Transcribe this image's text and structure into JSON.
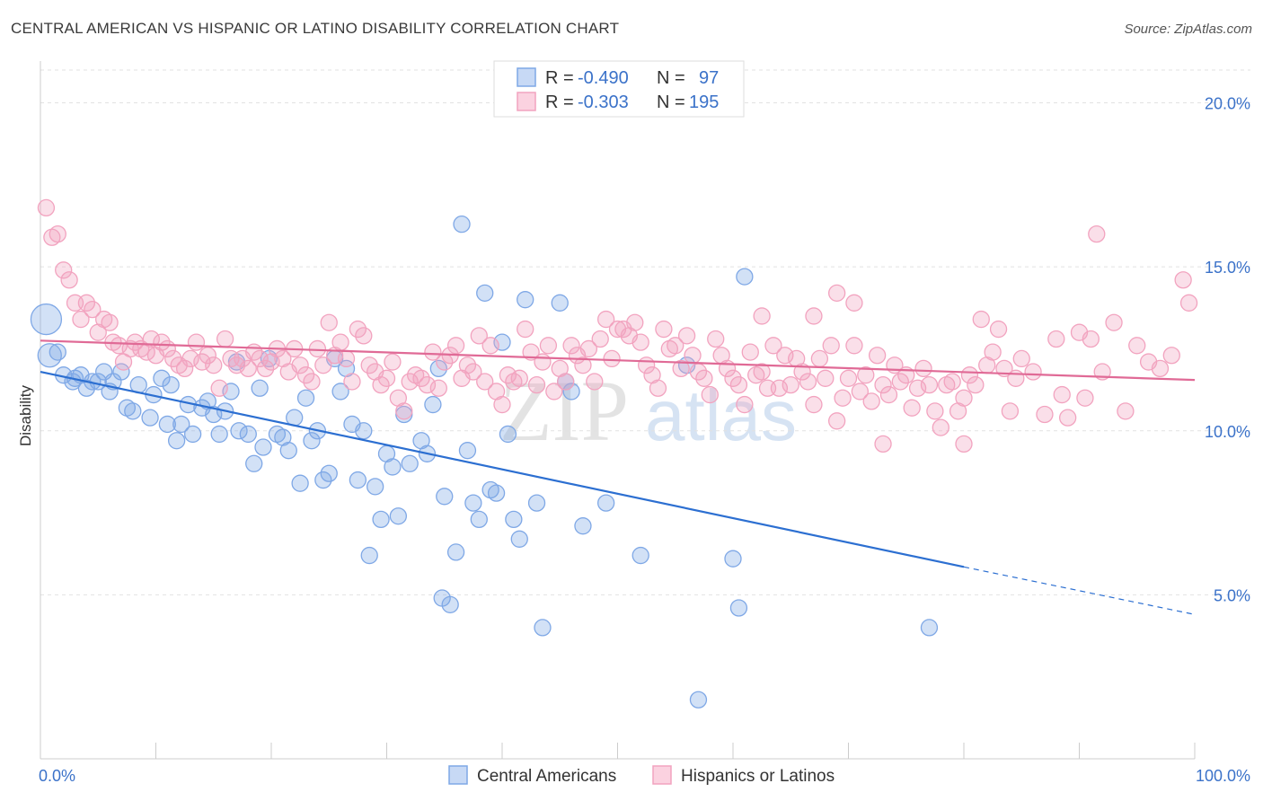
{
  "title": "CENTRAL AMERICAN VS HISPANIC OR LATINO DISABILITY CORRELATION CHART",
  "source": "Source: ZipAtlas.com",
  "watermark": {
    "zip": "ZIP",
    "atlas": "atlas"
  },
  "legend": {
    "row1": {
      "r_label": "R =",
      "r_value": "-0.490",
      "n_label": "N =",
      "n_value": "97"
    },
    "row2": {
      "r_label": "R =",
      "r_value": "-0.303",
      "n_label": "N =",
      "n_value": "195"
    }
  },
  "chart_data": {
    "type": "scatter",
    "xlabel": "",
    "ylabel": "Disability",
    "xlim": [
      0,
      100
    ],
    "ylim": [
      0,
      21
    ],
    "x_tick_labels": [
      "0.0%",
      "100.0%"
    ],
    "y_ticks": [
      5,
      10,
      15,
      20
    ],
    "y_tick_labels": [
      "5.0%",
      "10.0%",
      "15.0%",
      "20.0%"
    ],
    "grid": true,
    "legend_position": "top-center",
    "series": [
      {
        "name": "Central Americans",
        "color": "#7fa8e6",
        "line_color": "#2c6fd1",
        "trend": {
          "x0": 0,
          "y0": 11.8,
          "x1": 80,
          "y1": 5.85,
          "dash_to_x": 100,
          "dash_to_y": 4.4
        },
        "points": [
          [
            0.5,
            13.4
          ],
          [
            0.8,
            12.3
          ],
          [
            1.5,
            12.4
          ],
          [
            2,
            11.7
          ],
          [
            3,
            11.6
          ],
          [
            2.8,
            11.5
          ],
          [
            3.5,
            11.7
          ],
          [
            4,
            11.3
          ],
          [
            4.5,
            11.5
          ],
          [
            5,
            11.5
          ],
          [
            5.5,
            11.8
          ],
          [
            6,
            11.2
          ],
          [
            6.3,
            11.5
          ],
          [
            7,
            11.8
          ],
          [
            7.5,
            10.7
          ],
          [
            8,
            10.6
          ],
          [
            8.5,
            11.4
          ],
          [
            9.5,
            10.4
          ],
          [
            9.8,
            11.1
          ],
          [
            10.5,
            11.6
          ],
          [
            11,
            10.2
          ],
          [
            11.3,
            11.4
          ],
          [
            11.8,
            9.7
          ],
          [
            12.2,
            10.2
          ],
          [
            12.8,
            10.8
          ],
          [
            13.2,
            9.9
          ],
          [
            14,
            10.7
          ],
          [
            14.5,
            10.9
          ],
          [
            15,
            10.5
          ],
          [
            15.5,
            9.9
          ],
          [
            16,
            10.6
          ],
          [
            16.5,
            11.2
          ],
          [
            17,
            12.1
          ],
          [
            17.2,
            10.0
          ],
          [
            18,
            9.9
          ],
          [
            18.5,
            9.0
          ],
          [
            19,
            11.3
          ],
          [
            19.3,
            9.5
          ],
          [
            19.8,
            12.2
          ],
          [
            20.5,
            9.9
          ],
          [
            21,
            9.8
          ],
          [
            21.5,
            9.4
          ],
          [
            22,
            10.4
          ],
          [
            22.5,
            8.4
          ],
          [
            23,
            11.0
          ],
          [
            23.5,
            9.7
          ],
          [
            24,
            10.0
          ],
          [
            24.5,
            8.5
          ],
          [
            25,
            8.7
          ],
          [
            25.5,
            12.2
          ],
          [
            26,
            11.2
          ],
          [
            26.5,
            11.9
          ],
          [
            27,
            10.2
          ],
          [
            27.5,
            8.5
          ],
          [
            28,
            10.0
          ],
          [
            28.5,
            6.2
          ],
          [
            29,
            8.3
          ],
          [
            29.5,
            7.3
          ],
          [
            30,
            9.3
          ],
          [
            30.5,
            8.9
          ],
          [
            31,
            7.4
          ],
          [
            31.5,
            10.5
          ],
          [
            32,
            9.0
          ],
          [
            33,
            9.7
          ],
          [
            33.5,
            9.3
          ],
          [
            34,
            10.8
          ],
          [
            34.5,
            11.9
          ],
          [
            34.8,
            4.9
          ],
          [
            35,
            8.0
          ],
          [
            35.5,
            4.7
          ],
          [
            36,
            6.3
          ],
          [
            36.5,
            16.3
          ],
          [
            37,
            9.4
          ],
          [
            37.5,
            7.8
          ],
          [
            38,
            7.3
          ],
          [
            38.5,
            14.2
          ],
          [
            39,
            8.2
          ],
          [
            39.5,
            8.1
          ],
          [
            40,
            12.7
          ],
          [
            40.5,
            9.9
          ],
          [
            41,
            7.3
          ],
          [
            41.5,
            6.7
          ],
          [
            42,
            14.0
          ],
          [
            43,
            7.8
          ],
          [
            43.5,
            4.0
          ],
          [
            45,
            13.9
          ],
          [
            46,
            11.2
          ],
          [
            47,
            7.1
          ],
          [
            49,
            7.8
          ],
          [
            52,
            6.2
          ],
          [
            56,
            12.0
          ],
          [
            57,
            1.8
          ],
          [
            60,
            6.1
          ],
          [
            60.5,
            4.6
          ],
          [
            61,
            14.7
          ],
          [
            77,
            4.0
          ],
          [
            45.5,
            11.5
          ]
        ]
      },
      {
        "name": "Hispanics or Latinos",
        "color": "#f2a3bf",
        "line_color": "#e06a96",
        "trend": {
          "x0": 0,
          "y0": 12.75,
          "x1": 100,
          "y1": 11.55
        },
        "points": [
          [
            0.5,
            16.8
          ],
          [
            1,
            15.9
          ],
          [
            1.5,
            16.0
          ],
          [
            2,
            14.9
          ],
          [
            2.5,
            14.6
          ],
          [
            3,
            13.9
          ],
          [
            3.5,
            13.4
          ],
          [
            4,
            13.9
          ],
          [
            4.5,
            13.7
          ],
          [
            5,
            13.0
          ],
          [
            5.5,
            13.4
          ],
          [
            6,
            13.3
          ],
          [
            6.3,
            12.7
          ],
          [
            6.8,
            12.6
          ],
          [
            7.2,
            12.1
          ],
          [
            7.8,
            12.5
          ],
          [
            8.2,
            12.7
          ],
          [
            8.7,
            12.5
          ],
          [
            9.2,
            12.4
          ],
          [
            9.6,
            12.8
          ],
          [
            10,
            12.3
          ],
          [
            10.5,
            12.7
          ],
          [
            11,
            12.5
          ],
          [
            11.5,
            12.2
          ],
          [
            12,
            12.0
          ],
          [
            12.5,
            11.9
          ],
          [
            13,
            12.2
          ],
          [
            13.5,
            12.7
          ],
          [
            14,
            12.1
          ],
          [
            14.5,
            12.3
          ],
          [
            15,
            12.0
          ],
          [
            15.5,
            11.3
          ],
          [
            16,
            12.8
          ],
          [
            16.5,
            12.2
          ],
          [
            17,
            12.0
          ],
          [
            17.5,
            12.2
          ],
          [
            18,
            11.9
          ],
          [
            18.5,
            12.4
          ],
          [
            19,
            12.2
          ],
          [
            19.5,
            11.9
          ],
          [
            20,
            12.1
          ],
          [
            20.5,
            12.5
          ],
          [
            21,
            12.2
          ],
          [
            21.5,
            11.8
          ],
          [
            22,
            12.5
          ],
          [
            22.5,
            12.0
          ],
          [
            23,
            11.7
          ],
          [
            23.5,
            11.5
          ],
          [
            24,
            12.5
          ],
          [
            24.5,
            12.0
          ],
          [
            25,
            13.3
          ],
          [
            25.5,
            12.3
          ],
          [
            26,
            12.7
          ],
          [
            26.5,
            12.2
          ],
          [
            27,
            11.5
          ],
          [
            27.5,
            13.1
          ],
          [
            28,
            12.9
          ],
          [
            28.5,
            12.0
          ],
          [
            29,
            11.8
          ],
          [
            29.5,
            11.4
          ],
          [
            30,
            11.6
          ],
          [
            30.5,
            12.1
          ],
          [
            31,
            11.0
          ],
          [
            31.5,
            10.6
          ],
          [
            32,
            11.5
          ],
          [
            32.5,
            11.7
          ],
          [
            33,
            11.6
          ],
          [
            33.5,
            11.4
          ],
          [
            34,
            12.4
          ],
          [
            34.5,
            11.3
          ],
          [
            35,
            12.1
          ],
          [
            35.5,
            12.3
          ],
          [
            36,
            12.6
          ],
          [
            36.5,
            11.6
          ],
          [
            37,
            12.0
          ],
          [
            37.5,
            11.8
          ],
          [
            38,
            12.9
          ],
          [
            38.5,
            11.5
          ],
          [
            39,
            12.6
          ],
          [
            39.5,
            11.2
          ],
          [
            40,
            10.8
          ],
          [
            40.5,
            11.7
          ],
          [
            41,
            11.5
          ],
          [
            41.5,
            11.6
          ],
          [
            42,
            13.1
          ],
          [
            42.5,
            12.4
          ],
          [
            43,
            11.4
          ],
          [
            43.5,
            12.1
          ],
          [
            44,
            12.6
          ],
          [
            44.5,
            11.2
          ],
          [
            45,
            11.9
          ],
          [
            45.5,
            11.5
          ],
          [
            46,
            12.6
          ],
          [
            46.5,
            12.3
          ],
          [
            47,
            12.0
          ],
          [
            47.5,
            12.5
          ],
          [
            48,
            11.5
          ],
          [
            48.5,
            12.8
          ],
          [
            49,
            13.4
          ],
          [
            49.5,
            12.2
          ],
          [
            50,
            13.1
          ],
          [
            50.5,
            13.1
          ],
          [
            51,
            12.9
          ],
          [
            51.5,
            13.3
          ],
          [
            52,
            12.7
          ],
          [
            52.5,
            12.0
          ],
          [
            53,
            11.7
          ],
          [
            53.5,
            11.3
          ],
          [
            54,
            13.1
          ],
          [
            54.5,
            12.5
          ],
          [
            55,
            12.6
          ],
          [
            55.5,
            11.9
          ],
          [
            56,
            12.9
          ],
          [
            56.5,
            12.3
          ],
          [
            57,
            11.8
          ],
          [
            57.5,
            11.6
          ],
          [
            58,
            11.1
          ],
          [
            58.5,
            12.8
          ],
          [
            59,
            12.3
          ],
          [
            59.5,
            11.9
          ],
          [
            60,
            11.6
          ],
          [
            60.5,
            11.4
          ],
          [
            61,
            10.8
          ],
          [
            61.5,
            12.4
          ],
          [
            62,
            11.7
          ],
          [
            62.5,
            11.8
          ],
          [
            63,
            11.3
          ],
          [
            63.5,
            12.6
          ],
          [
            64,
            11.3
          ],
          [
            64.5,
            12.3
          ],
          [
            65,
            11.4
          ],
          [
            65.5,
            12.2
          ],
          [
            66,
            11.8
          ],
          [
            66.5,
            11.5
          ],
          [
            67,
            10.8
          ],
          [
            67.5,
            12.2
          ],
          [
            68,
            11.6
          ],
          [
            68.5,
            12.6
          ],
          [
            69,
            10.3
          ],
          [
            69.5,
            11.0
          ],
          [
            70,
            11.6
          ],
          [
            70.5,
            12.6
          ],
          [
            71,
            11.2
          ],
          [
            71.5,
            11.7
          ],
          [
            72,
            10.9
          ],
          [
            72.5,
            12.3
          ],
          [
            73,
            11.4
          ],
          [
            73.5,
            11.1
          ],
          [
            74,
            12.0
          ],
          [
            74.5,
            11.5
          ],
          [
            75,
            11.7
          ],
          [
            75.5,
            10.7
          ],
          [
            76,
            11.3
          ],
          [
            76.5,
            11.9
          ],
          [
            77,
            11.4
          ],
          [
            77.5,
            10.6
          ],
          [
            78,
            10.1
          ],
          [
            78.5,
            11.4
          ],
          [
            79,
            11.5
          ],
          [
            79.5,
            10.6
          ],
          [
            80,
            11.0
          ],
          [
            80.5,
            11.7
          ],
          [
            81,
            11.4
          ],
          [
            81.5,
            13.4
          ],
          [
            82,
            12.0
          ],
          [
            82.5,
            12.4
          ],
          [
            83,
            13.1
          ],
          [
            83.5,
            11.9
          ],
          [
            84,
            10.6
          ],
          [
            84.5,
            11.6
          ],
          [
            85,
            12.2
          ],
          [
            86,
            11.8
          ],
          [
            87,
            10.5
          ],
          [
            88,
            12.8
          ],
          [
            88.5,
            11.1
          ],
          [
            89,
            10.4
          ],
          [
            90,
            13.0
          ],
          [
            90.5,
            11.0
          ],
          [
            91,
            12.8
          ],
          [
            92,
            11.8
          ],
          [
            93,
            13.3
          ],
          [
            94,
            10.6
          ],
          [
            95,
            12.6
          ],
          [
            96,
            12.1
          ],
          [
            97,
            11.9
          ],
          [
            98,
            12.3
          ],
          [
            99,
            14.6
          ],
          [
            99.5,
            13.9
          ],
          [
            91.5,
            16.0
          ],
          [
            69,
            14.2
          ],
          [
            67,
            13.5
          ],
          [
            70.5,
            13.9
          ],
          [
            62.5,
            13.5
          ],
          [
            73,
            9.6
          ],
          [
            80,
            9.6
          ]
        ]
      }
    ]
  }
}
